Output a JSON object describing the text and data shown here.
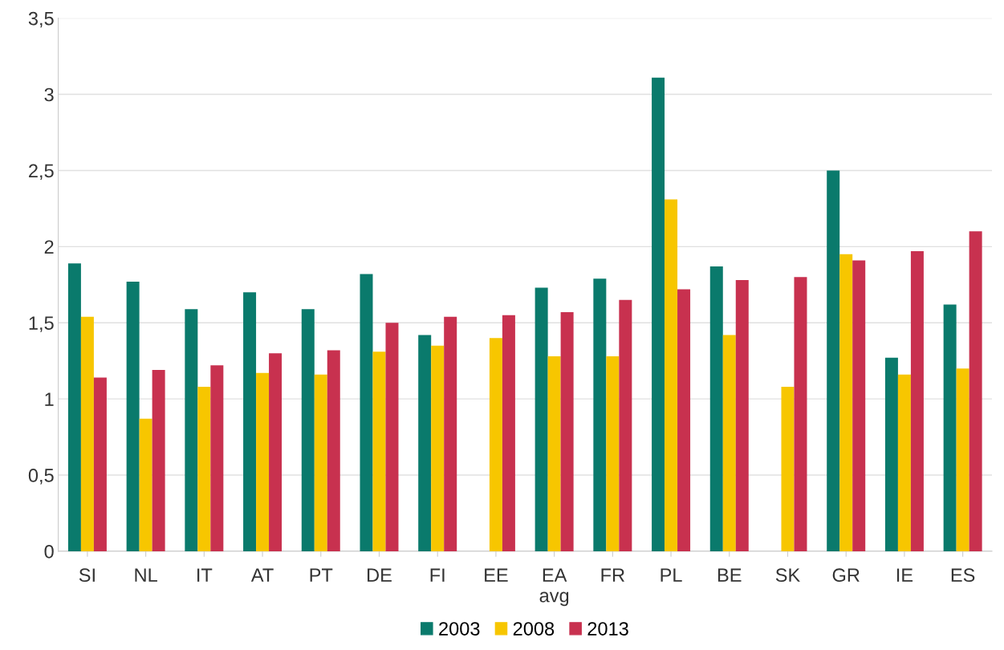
{
  "chart_data": {
    "type": "bar",
    "categories": [
      "SI",
      "NL",
      "IT",
      "AT",
      "PT",
      "DE",
      "FI",
      "EE",
      "EA\navg",
      "FR",
      "PL",
      "BE",
      "SK",
      "GR",
      "IE",
      "ES"
    ],
    "series": [
      {
        "name": "2003",
        "color": "#0a7a6c",
        "values": [
          1.89,
          1.77,
          1.59,
          1.7,
          1.59,
          1.82,
          1.42,
          null,
          1.73,
          1.79,
          3.11,
          1.87,
          null,
          2.5,
          1.27,
          1.62
        ]
      },
      {
        "name": "2008",
        "color": "#f7c600",
        "values": [
          1.54,
          0.87,
          1.08,
          1.17,
          1.16,
          1.31,
          1.35,
          1.4,
          1.28,
          1.28,
          2.31,
          1.42,
          1.08,
          1.95,
          1.16,
          1.2
        ]
      },
      {
        "name": "2013",
        "color": "#c8314f",
        "values": [
          1.14,
          1.19,
          1.22,
          1.3,
          1.32,
          1.5,
          1.54,
          1.55,
          1.57,
          1.65,
          1.72,
          1.78,
          1.8,
          1.91,
          1.97,
          2.1
        ]
      }
    ],
    "ylim": [
      0,
      3.5
    ],
    "yticks": [
      0,
      {
        "value": 0.5,
        "label": "0,5"
      },
      1,
      {
        "value": 1.5,
        "label": "1,5"
      },
      2,
      {
        "value": 2.5,
        "label": "2,5"
      },
      3,
      {
        "value": 3.5,
        "label": "3,5"
      }
    ],
    "grid": "y",
    "legend": "bottom"
  }
}
